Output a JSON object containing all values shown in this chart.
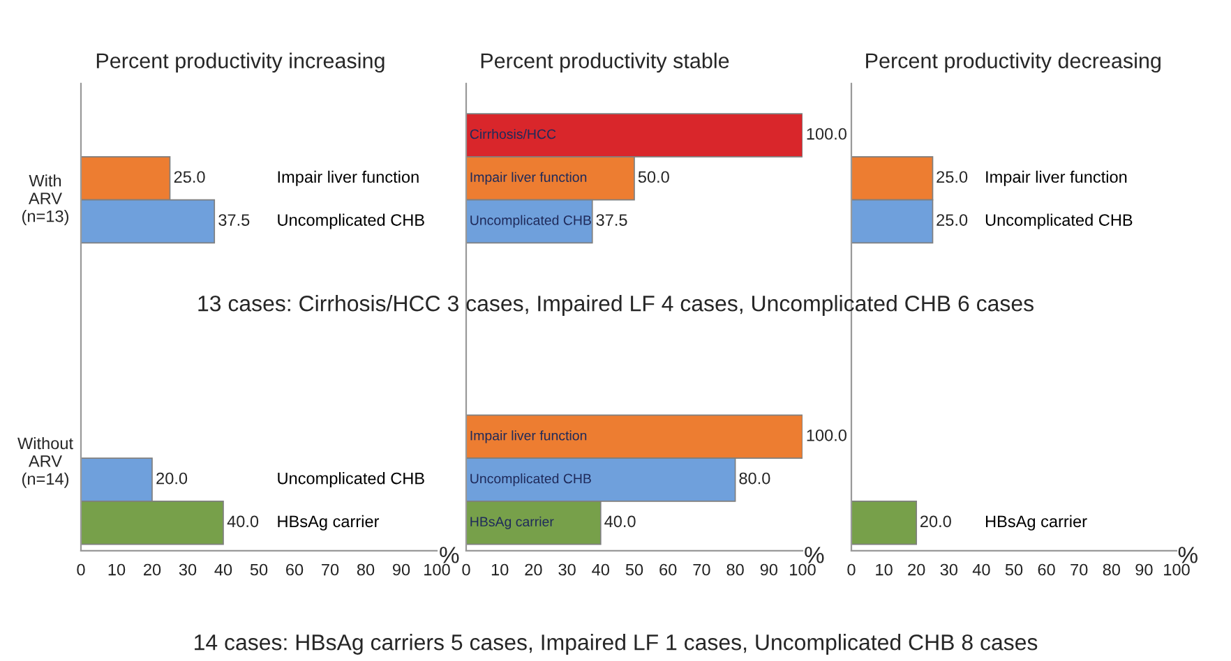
{
  "chart_data": [
    {
      "type": "bar",
      "orientation": "horizontal",
      "title": "Percent productivity increasing",
      "xlabel": "%",
      "categories": [
        null,
        "Impair liver function",
        "Uncomplicated CHB",
        null,
        null,
        null,
        null,
        null,
        "Uncomplicated CHB",
        "HBsAg carrier"
      ],
      "values": [
        null,
        25,
        37.5,
        null,
        null,
        null,
        null,
        null,
        20,
        40
      ],
      "value_labels": [
        null,
        "25.0",
        "37.5",
        null,
        null,
        null,
        null,
        null,
        "20.0",
        "40.0"
      ],
      "colors": [
        null,
        "#ed7d31",
        "#6fa0dc",
        null,
        null,
        null,
        null,
        null,
        "#6fa0dc",
        "#77a04a"
      ],
      "xlim": [
        0,
        100
      ],
      "xticks": [
        0,
        10,
        20,
        30,
        40,
        50,
        60,
        70,
        80,
        90,
        100
      ],
      "tick_labels": "x",
      "grid": false,
      "legend": false,
      "annotations": [
        "With ARV (n=13)",
        "Without ARV (n=14)"
      ]
    },
    {
      "type": "bar",
      "orientation": "horizontal",
      "title": "Percent productivity stable",
      "xlabel": "%",
      "categories": [
        "Cirrhosis/HCC",
        "Impair liver function",
        "Uncomplicated CHB",
        null,
        null,
        null,
        null,
        "Impair liver function",
        "Uncomplicated CHB",
        "HBsAg carrier"
      ],
      "values": [
        100,
        50,
        37.5,
        null,
        null,
        null,
        null,
        100,
        80,
        40
      ],
      "value_labels": [
        "100.0",
        "50.0",
        "37.5",
        null,
        null,
        null,
        null,
        "100.0",
        "80.0",
        "40.0"
      ],
      "colors": [
        "#d9262b",
        "#ed7d31",
        "#6fa0dc",
        null,
        null,
        null,
        null,
        "#ed7d31",
        "#6fa0dc",
        "#77a04a"
      ],
      "xlim": [
        0,
        100
      ],
      "xticks": [
        0,
        10,
        20,
        30,
        40,
        50,
        60,
        70,
        80,
        90,
        100
      ],
      "tick_labels": "x",
      "grid": false,
      "legend": false,
      "annotations": [
        "13 cases: Cirrhosis/HCC 3 cases, Impaired LF 4 cases, Uncomplicated CHB 6 cases",
        "14 cases: HBsAg carriers 5 cases, Impaired LF 1 cases, Uncomplicated CHB 8 cases"
      ]
    },
    {
      "type": "bar",
      "orientation": "horizontal",
      "title": "Percent productivity decreasing",
      "xlabel": "%",
      "categories": [
        null,
        "Impair liver function",
        "Uncomplicated CHB",
        null,
        null,
        null,
        null,
        null,
        null,
        "HBsAg carrier"
      ],
      "values": [
        null,
        25,
        25,
        null,
        null,
        null,
        null,
        null,
        null,
        20
      ],
      "value_labels": [
        null,
        "25.0",
        "25.0",
        null,
        null,
        null,
        null,
        null,
        null,
        "20.0"
      ],
      "colors": [
        null,
        "#ed7d31",
        "#6fa0dc",
        null,
        null,
        null,
        null,
        null,
        null,
        "#77a04a"
      ],
      "xlim": [
        0,
        100
      ],
      "xticks": [
        0,
        10,
        20,
        30,
        40,
        50,
        60,
        70,
        80,
        90,
        100
      ],
      "tick_labels": "x",
      "grid": false,
      "legend": false
    }
  ]
}
